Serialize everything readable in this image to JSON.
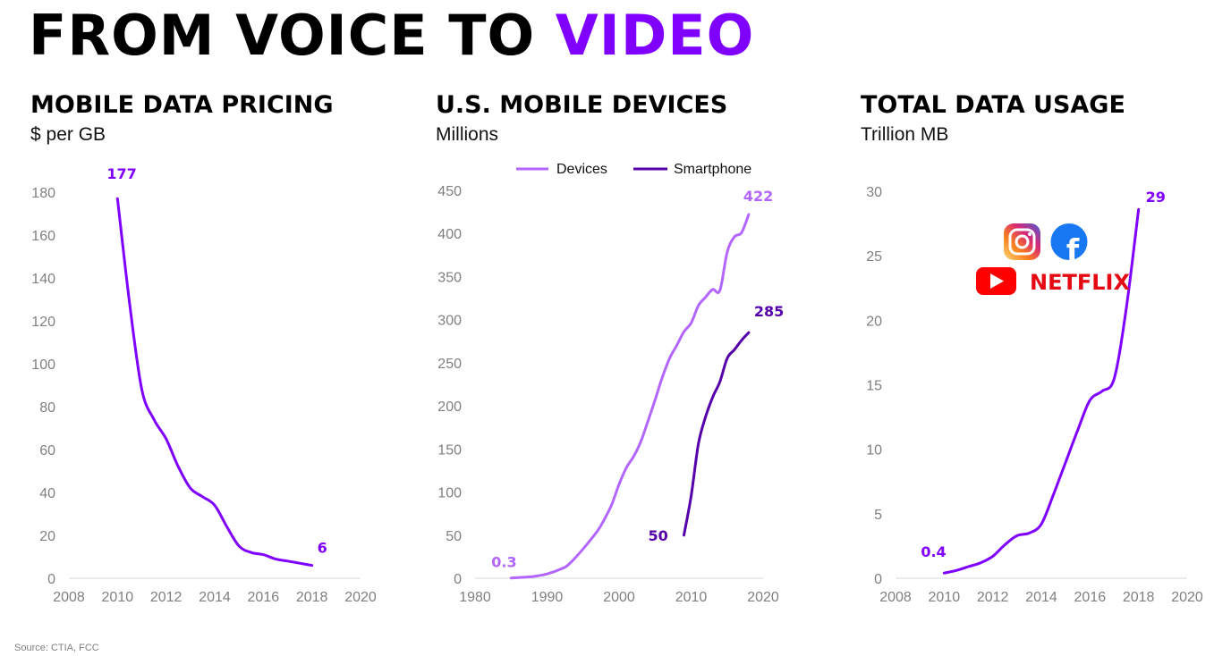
{
  "header": {
    "title_main": "FROM VOICE TO ",
    "title_accent": "VIDEO",
    "accent_color": "#7f00ff"
  },
  "source": "Source: CTIA, FCC",
  "logos": {
    "icons": [
      "instagram-icon",
      "facebook-icon",
      "youtube-icon"
    ],
    "netflix_text": "NETFLIX",
    "netflix_color": "#e50914"
  },
  "chart_data": [
    {
      "type": "line",
      "title": "MOBILE DATA PRICING",
      "subtitle": "$ per GB",
      "xlim": [
        2008,
        2020
      ],
      "ylim": [
        0,
        180
      ],
      "xticks": [
        2008,
        2010,
        2012,
        2014,
        2016,
        2018,
        2020
      ],
      "yticks": [
        0,
        20,
        40,
        60,
        80,
        100,
        120,
        140,
        160,
        180
      ],
      "grid": false,
      "series": [
        {
          "color": "#7f00ff",
          "x": [
            2010,
            2010.5,
            2011,
            2011.5,
            2012,
            2012.5,
            2013,
            2013.5,
            2014,
            2014.5,
            2015,
            2015.5,
            2016,
            2016.5,
            2017,
            2017.5,
            2018
          ],
          "y": [
            177,
            128,
            88,
            74,
            65,
            52,
            42,
            38,
            34,
            24,
            15,
            12,
            11,
            9,
            8,
            7,
            6
          ]
        }
      ],
      "annotations": [
        {
          "text": "177",
          "x": 2010,
          "y": 177,
          "color": "#7f00ff"
        },
        {
          "text": "6",
          "x": 2018,
          "y": 6,
          "color": "#7f00ff"
        }
      ]
    },
    {
      "type": "line",
      "title": "U.S. MOBILE DEVICES",
      "subtitle": "Millions",
      "xlim": [
        1980,
        2020
      ],
      "ylim": [
        0,
        450
      ],
      "xticks": [
        1980,
        1990,
        2000,
        2010,
        2020
      ],
      "yticks": [
        0,
        50,
        100,
        150,
        200,
        250,
        300,
        350,
        400,
        450
      ],
      "grid": false,
      "legend": "top-center",
      "series": [
        {
          "name": "Devices",
          "color": "#b266ff",
          "x": [
            1985,
            1988,
            1990,
            1992,
            1993,
            1995,
            1997,
            1998,
            1999,
            2000,
            2001,
            2002,
            2003,
            2004,
            2005,
            2006,
            2007,
            2008,
            2009,
            2010,
            2011,
            2012,
            2013,
            2014,
            2015,
            2016,
            2017,
            2018
          ],
          "y": [
            0.3,
            2,
            5,
            11,
            16,
            34,
            55,
            69,
            86,
            109,
            128,
            141,
            158,
            182,
            207,
            233,
            255,
            270,
            286,
            296,
            316,
            326,
            335,
            334,
            378,
            396,
            401,
            422
          ]
        },
        {
          "name": "Smartphone",
          "color": "#5500aa",
          "x": [
            2009,
            2010,
            2011,
            2012,
            2013,
            2014,
            2015,
            2016,
            2017,
            2018
          ],
          "y": [
            50,
            95,
            155,
            187,
            210,
            228,
            255,
            265,
            276,
            285
          ]
        }
      ],
      "annotations": [
        {
          "text": "0.3",
          "x": 1985,
          "y": 0.3,
          "color": "#b266ff"
        },
        {
          "text": "422",
          "x": 2018,
          "y": 422,
          "color": "#b266ff"
        },
        {
          "text": "50",
          "x": 2009,
          "y": 50,
          "color": "#5500aa"
        },
        {
          "text": "285",
          "x": 2018,
          "y": 285,
          "color": "#5500aa"
        }
      ]
    },
    {
      "type": "line",
      "title": "TOTAL DATA USAGE",
      "subtitle": "Trillion MB",
      "xlim": [
        2008,
        2020
      ],
      "ylim": [
        0,
        30
      ],
      "xticks": [
        2008,
        2010,
        2012,
        2014,
        2016,
        2018,
        2020
      ],
      "yticks": [
        0,
        5,
        10,
        15,
        20,
        25,
        30
      ],
      "grid": false,
      "series": [
        {
          "color": "#7f00ff",
          "x": [
            2010,
            2010.5,
            2011,
            2011.5,
            2012,
            2012.5,
            2013,
            2013.5,
            2014,
            2014.5,
            2015,
            2015.5,
            2016,
            2016.5,
            2017,
            2017.5,
            2018
          ],
          "y": [
            0.4,
            0.6,
            0.9,
            1.2,
            1.7,
            2.6,
            3.3,
            3.5,
            4.2,
            6.5,
            9.0,
            11.5,
            13.8,
            14.5,
            15.5,
            21.0,
            28.6
          ]
        }
      ],
      "annotations": [
        {
          "text": "0.4",
          "x": 2010,
          "y": 0.4,
          "color": "#7f00ff"
        },
        {
          "text": "29",
          "x": 2018,
          "y": 28.6,
          "color": "#7f00ff"
        }
      ]
    }
  ]
}
